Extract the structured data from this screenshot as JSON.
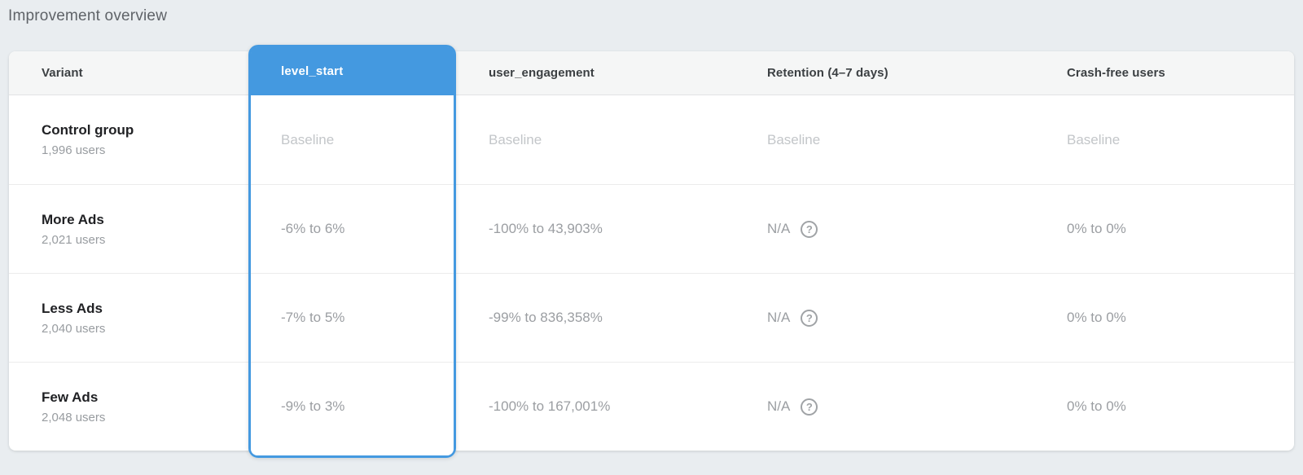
{
  "page": {
    "title": "Improvement overview"
  },
  "table": {
    "columns": [
      {
        "key": "variant",
        "label": "Variant"
      },
      {
        "key": "level_start",
        "label": "level_start",
        "highlighted": true
      },
      {
        "key": "user_engagement",
        "label": "user_engagement"
      },
      {
        "key": "retention",
        "label": "Retention (4–7 days)"
      },
      {
        "key": "crash_free",
        "label": "Crash-free users"
      }
    ],
    "rows": [
      {
        "variant": "Control group",
        "users": "1,996 users",
        "level_start": "Baseline",
        "user_engagement": "Baseline",
        "retention": "Baseline",
        "crash_free": "Baseline",
        "is_baseline": true
      },
      {
        "variant": "More Ads",
        "users": "2,021 users",
        "level_start": "-6% to 6%",
        "user_engagement": "-100% to 43,903%",
        "retention": "N/A",
        "crash_free": "0% to 0%",
        "is_baseline": false
      },
      {
        "variant": "Less Ads",
        "users": "2,040 users",
        "level_start": "-7% to 5%",
        "user_engagement": "-99% to 836,358%",
        "retention": "N/A",
        "crash_free": "0% to 0%",
        "is_baseline": false
      },
      {
        "variant": "Few Ads",
        "users": "2,048 users",
        "level_start": "-9% to 3%",
        "user_engagement": "-100% to 167,001%",
        "retention": "N/A",
        "crash_free": "0% to 0%",
        "is_baseline": false
      }
    ]
  },
  "icons": {
    "help": {
      "name": "help-circle-icon",
      "glyph": "?"
    }
  },
  "colors": {
    "accent_blue": "#4499e0",
    "page_background": "#e9edf0",
    "header_background": "#f5f6f6",
    "baseline_text": "#c3c6c9",
    "value_text": "#9b9ea2"
  }
}
